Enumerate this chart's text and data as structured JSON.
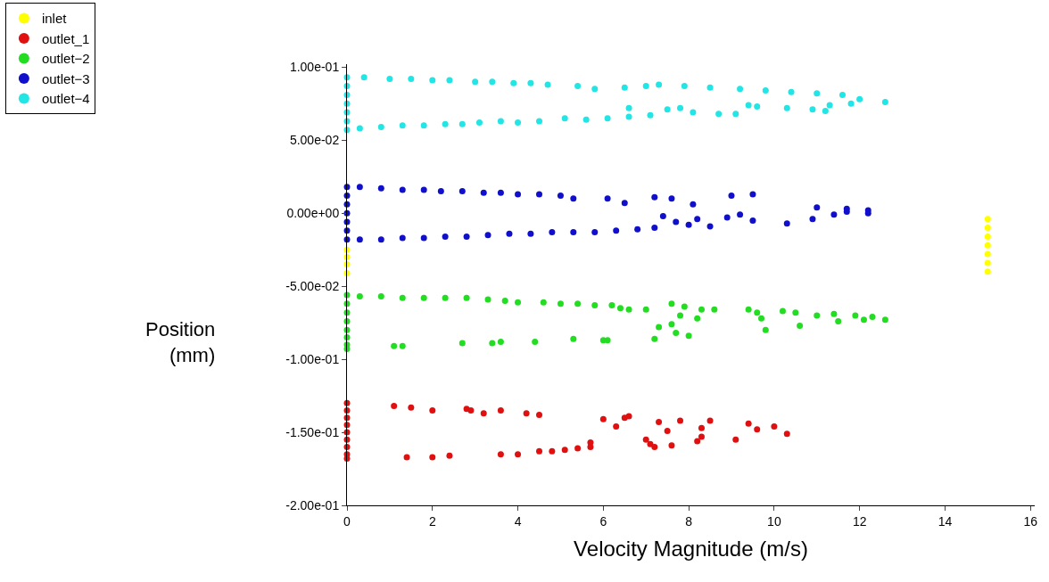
{
  "chart_data": {
    "type": "scatter",
    "xlabel": "Velocity Magnitude (m/s)",
    "ylabel": "Position\n(mm)",
    "xlim": [
      0,
      16.1
    ],
    "xticks": [
      0,
      2,
      4,
      6,
      8,
      10,
      12,
      14,
      16
    ],
    "ylim": [
      -0.2,
      0.102
    ],
    "yticks": [
      {
        "value": -0.2,
        "label": "-2.00e-01"
      },
      {
        "value": -0.15,
        "label": "-1.50e-01"
      },
      {
        "value": -0.1,
        "label": "-1.00e-01"
      },
      {
        "value": -0.05,
        "label": "-5.00e-02"
      },
      {
        "value": 0,
        "label": "0.00e+00"
      },
      {
        "value": 0.05,
        "label": "5.00e-02"
      },
      {
        "value": 0.1,
        "label": "1.00e-01"
      }
    ],
    "legend": "top left",
    "marker": "circle",
    "series": [
      {
        "name": "inlet",
        "color": "#ffff00",
        "x": [
          0,
          0,
          0,
          0,
          15,
          15,
          15,
          15,
          15,
          15,
          15
        ],
        "values": [
          -0.025,
          -0.03,
          -0.035,
          -0.041,
          -0.004,
          -0.01,
          -0.016,
          -0.022,
          -0.028,
          -0.034,
          -0.04
        ]
      },
      {
        "name": "outlet_1",
        "color": "#e01010",
        "x": [
          0,
          0,
          0,
          0,
          0,
          0,
          0,
          0,
          0,
          1.1,
          1.5,
          2.0,
          2.8,
          2.9,
          3.2,
          3.6,
          4.2,
          4.5,
          6.0,
          6.5,
          6.6,
          7.3,
          7.8,
          8.5,
          9.4,
          10.0,
          6.3,
          7.5,
          8.3,
          9.6,
          1.4,
          2.0,
          2.4,
          3.6,
          4.0,
          4.5,
          4.8,
          5.1,
          5.4,
          5.7,
          5.7,
          7.1,
          7.2,
          7.6,
          8.3,
          8.2,
          9.1,
          10.3,
          7.0
        ],
        "values": [
          -0.13,
          -0.135,
          -0.14,
          -0.145,
          -0.15,
          -0.155,
          -0.16,
          -0.165,
          -0.168,
          -0.132,
          -0.133,
          -0.135,
          -0.134,
          -0.135,
          -0.137,
          -0.135,
          -0.137,
          -0.138,
          -0.141,
          -0.14,
          -0.139,
          -0.143,
          -0.142,
          -0.142,
          -0.144,
          -0.146,
          -0.146,
          -0.149,
          -0.147,
          -0.148,
          -0.167,
          -0.167,
          -0.166,
          -0.165,
          -0.165,
          -0.163,
          -0.163,
          -0.162,
          -0.161,
          -0.16,
          -0.157,
          -0.158,
          -0.16,
          -0.159,
          -0.153,
          -0.156,
          -0.155,
          -0.151,
          -0.155
        ]
      },
      {
        "name": "outlet−2",
        "color": "#22dd22",
        "x": [
          0,
          0,
          0,
          0,
          0,
          0,
          0,
          0,
          0.3,
          0.8,
          1.3,
          1.8,
          2.3,
          2.8,
          3.3,
          3.7,
          4.0,
          4.6,
          5.0,
          5.4,
          5.8,
          6.2,
          6.4,
          6.6,
          7.0,
          7.6,
          7.9,
          8.3,
          8.6,
          9.4,
          9.6,
          10.2,
          10.5,
          11.0,
          11.4,
          11.9,
          12.3,
          12.6,
          7.8,
          8.2,
          7.6,
          9.7,
          10.6,
          11.5,
          12.1,
          1.1,
          1.3,
          2.7,
          3.4,
          3.6,
          4.4,
          5.3,
          6.0,
          6.1,
          7.2,
          7.7,
          8.0,
          9.8,
          7.3
        ],
        "values": [
          -0.056,
          -0.062,
          -0.068,
          -0.074,
          -0.08,
          -0.085,
          -0.09,
          -0.093,
          -0.057,
          -0.057,
          -0.058,
          -0.058,
          -0.058,
          -0.058,
          -0.059,
          -0.06,
          -0.061,
          -0.061,
          -0.062,
          -0.062,
          -0.063,
          -0.063,
          -0.065,
          -0.066,
          -0.066,
          -0.062,
          -0.064,
          -0.066,
          -0.066,
          -0.066,
          -0.068,
          -0.067,
          -0.068,
          -0.07,
          -0.069,
          -0.07,
          -0.071,
          -0.073,
          -0.07,
          -0.072,
          -0.076,
          -0.072,
          -0.077,
          -0.074,
          -0.073,
          -0.091,
          -0.091,
          -0.089,
          -0.089,
          -0.088,
          -0.088,
          -0.086,
          -0.087,
          -0.087,
          -0.086,
          -0.082,
          -0.084,
          -0.08,
          -0.078
        ]
      },
      {
        "name": "outlet−3",
        "color": "#1010cc",
        "x": [
          0,
          0,
          0,
          0,
          0,
          0,
          0,
          0.3,
          0.8,
          1.3,
          1.8,
          2.2,
          2.7,
          3.2,
          3.6,
          4.0,
          4.5,
          5.0,
          5.3,
          6.1,
          6.5,
          7.2,
          7.6,
          8.1,
          9.0,
          9.5,
          11.0,
          11.7,
          12.2,
          0.3,
          0.8,
          1.3,
          1.8,
          2.3,
          2.8,
          3.3,
          3.8,
          4.3,
          4.8,
          5.3,
          5.8,
          6.3,
          6.8,
          7.2,
          7.7,
          8.2,
          8.9,
          9.5,
          10.3,
          10.9,
          11.4,
          11.7,
          12.2,
          7.4,
          8.0,
          8.5,
          9.2
        ],
        "values": [
          0.018,
          0.012,
          0.006,
          0,
          -0.006,
          -0.012,
          -0.018,
          0.018,
          0.017,
          0.016,
          0.016,
          0.015,
          0.015,
          0.014,
          0.014,
          0.013,
          0.013,
          0.012,
          0.01,
          0.01,
          0.007,
          0.011,
          0.01,
          0.006,
          0.012,
          0.013,
          0.004,
          0.003,
          0.002,
          -0.018,
          -0.018,
          -0.017,
          -0.017,
          -0.016,
          -0.016,
          -0.015,
          -0.014,
          -0.014,
          -0.013,
          -0.013,
          -0.013,
          -0.012,
          -0.011,
          -0.01,
          -0.006,
          -0.004,
          -0.003,
          -0.005,
          -0.007,
          -0.004,
          -0.001,
          0.001,
          0.0,
          -0.002,
          -0.008,
          -0.009,
          -0.001
        ]
      },
      {
        "name": "outlet−4",
        "color": "#22e5e5",
        "x": [
          0,
          0,
          0,
          0,
          0,
          0,
          0,
          0.4,
          1.0,
          1.5,
          2.0,
          2.4,
          3.0,
          3.4,
          3.9,
          4.3,
          4.7,
          5.4,
          5.8,
          6.5,
          7.0,
          7.3,
          7.9,
          8.5,
          9.2,
          9.8,
          10.4,
          11.0,
          11.6,
          12.0,
          12.6,
          0.3,
          0.8,
          1.3,
          1.8,
          2.3,
          2.7,
          3.1,
          3.6,
          4.0,
          4.5,
          5.1,
          5.6,
          6.1,
          6.6,
          7.1,
          7.5,
          8.1,
          8.7,
          9.1,
          9.6,
          10.3,
          10.9,
          11.3,
          11.8,
          6.6,
          7.8,
          9.4,
          11.2
        ],
        "values": [
          0.057,
          0.063,
          0.069,
          0.075,
          0.081,
          0.087,
          0.093,
          0.093,
          0.092,
          0.092,
          0.091,
          0.091,
          0.09,
          0.09,
          0.089,
          0.089,
          0.088,
          0.087,
          0.085,
          0.086,
          0.087,
          0.088,
          0.087,
          0.086,
          0.085,
          0.084,
          0.083,
          0.082,
          0.081,
          0.078,
          0.076,
          0.058,
          0.059,
          0.06,
          0.06,
          0.061,
          0.061,
          0.062,
          0.063,
          0.062,
          0.063,
          0.065,
          0.064,
          0.065,
          0.066,
          0.067,
          0.071,
          0.069,
          0.068,
          0.068,
          0.073,
          0.072,
          0.071,
          0.074,
          0.075,
          0.072,
          0.072,
          0.074,
          0.07
        ]
      }
    ]
  }
}
